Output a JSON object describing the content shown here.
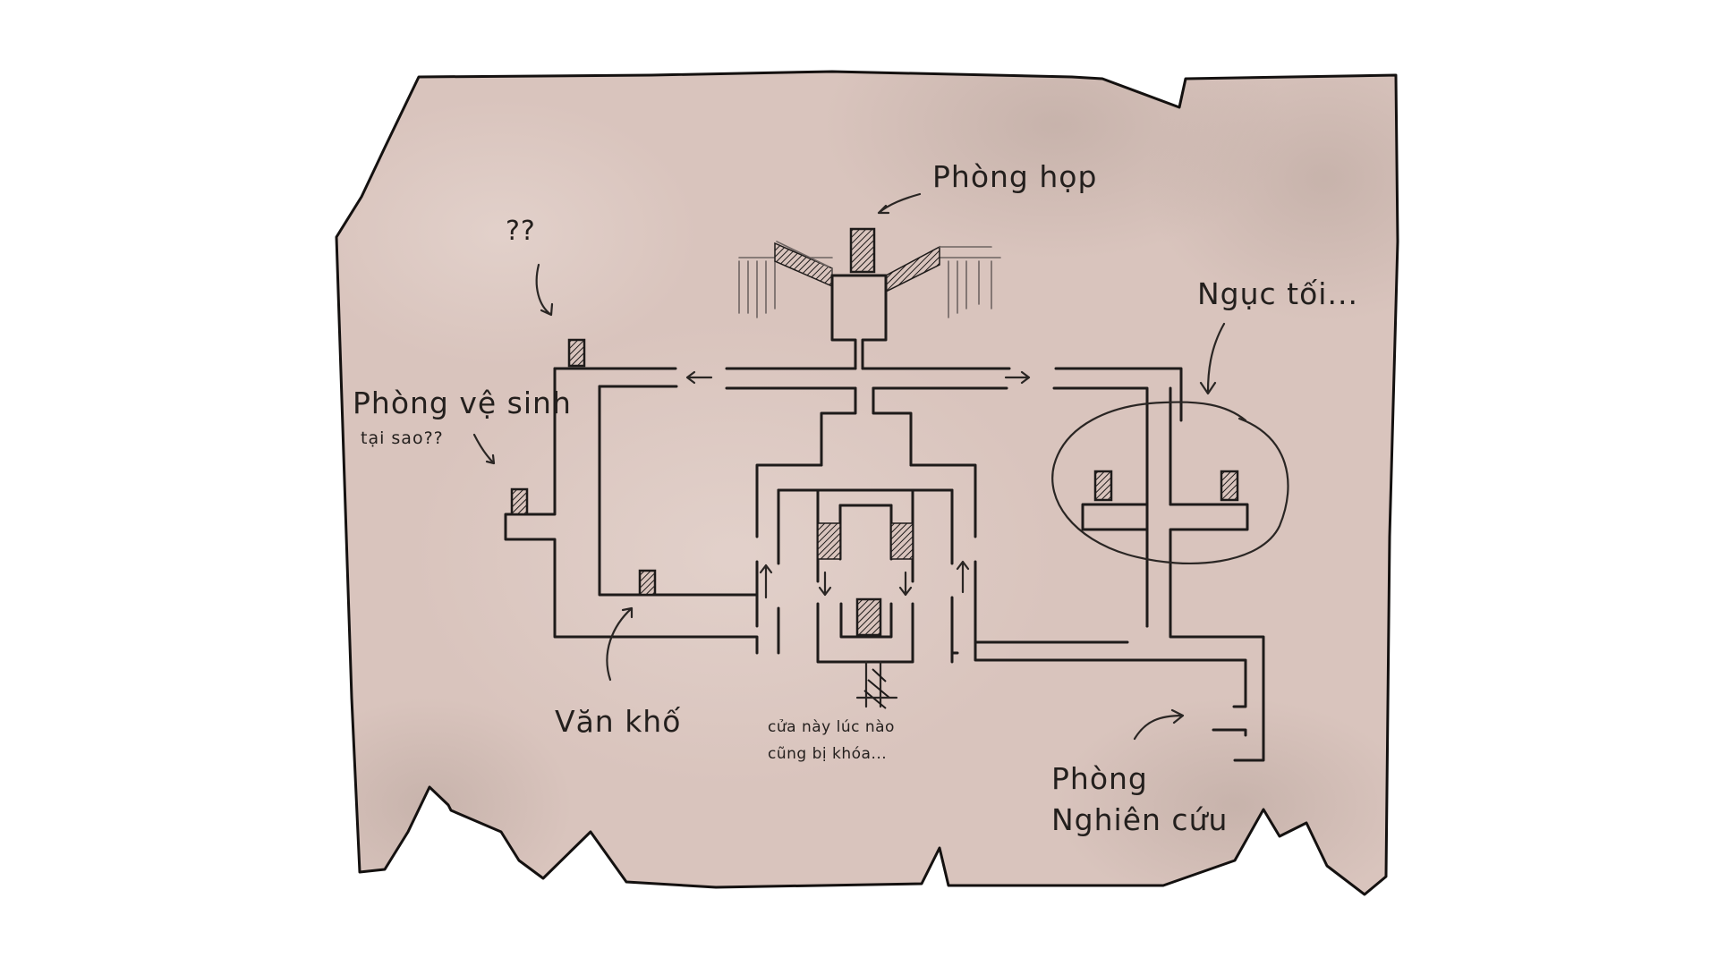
{
  "map": {
    "paper_color": "#d9c4bd",
    "ink_color": "#1e1b1a",
    "labels": {
      "meeting_room": "Phòng họp",
      "unknown": "??",
      "dungeon": "Ngục tối...",
      "restroom": "Phòng vệ sinh",
      "restroom_note": "tại sao??",
      "archive": "Văn khố",
      "locked_door_note_line1": "cửa này lúc nào",
      "locked_door_note_line2": "cũng bị khóa...",
      "research_room_line1": "Phòng",
      "research_room_line2": "Nghiên cứu"
    }
  }
}
